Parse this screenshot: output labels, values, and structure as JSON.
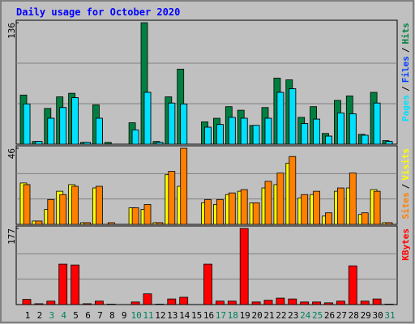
{
  "title": "Daily usage for October 2020",
  "legend_separator": "/",
  "chart_data": [
    {
      "type": "bar",
      "ylim": [
        0,
        136
      ],
      "yticks": [
        136
      ],
      "series": [
        {
          "name": "Hits",
          "color": "#008040",
          "values": [
            55,
            3,
            40,
            53,
            57,
            2,
            44,
            2,
            0,
            24,
            136,
            3,
            53,
            84,
            0,
            25,
            29,
            42,
            38,
            21,
            41,
            74,
            72,
            30,
            42,
            12,
            49,
            54,
            11,
            58,
            4
          ]
        },
        {
          "name": "Files",
          "color": "#0040ff",
          "values": [
            45,
            3,
            29,
            41,
            52,
            2,
            29,
            0,
            0,
            16,
            58,
            2,
            46,
            45,
            0,
            19,
            22,
            30,
            29,
            21,
            29,
            58,
            62,
            23,
            28,
            9,
            35,
            34,
            10,
            46,
            3
          ]
        },
        {
          "name": "Pages",
          "color": "#00e0ff",
          "values": [
            45,
            3,
            29,
            41,
            52,
            2,
            29,
            0,
            0,
            16,
            58,
            2,
            46,
            45,
            0,
            19,
            22,
            30,
            29,
            21,
            29,
            58,
            62,
            23,
            28,
            9,
            35,
            34,
            10,
            46,
            3
          ]
        }
      ]
    },
    {
      "type": "bar",
      "ylim": [
        0,
        46
      ],
      "yticks": [
        46
      ],
      "series": [
        {
          "name": "Visits",
          "color": "#ffff00",
          "values": [
            25,
            2,
            9,
            20,
            24,
            1,
            22,
            0,
            0,
            10,
            9,
            1,
            30,
            23,
            0,
            13,
            12,
            18,
            20,
            13,
            22,
            24,
            37,
            16,
            18,
            5,
            20,
            22,
            6,
            21,
            1
          ]
        },
        {
          "name": "Sites",
          "color": "#ff8000",
          "values": [
            24,
            2,
            15,
            18,
            23,
            1,
            23,
            1,
            0,
            10,
            12,
            1,
            32,
            46,
            0,
            15,
            15,
            19,
            21,
            13,
            26,
            31,
            41,
            18,
            20,
            7,
            22,
            31,
            7,
            20,
            1
          ]
        }
      ]
    },
    {
      "type": "bar",
      "ylim": [
        0,
        177
      ],
      "yticks": [
        177
      ],
      "categories": [
        "1",
        "2",
        "3",
        "4",
        "5",
        "6",
        "7",
        "8",
        "9",
        "10",
        "11",
        "12",
        "13",
        "14",
        "15",
        "16",
        "17",
        "18",
        "19",
        "20",
        "21",
        "22",
        "23",
        "24",
        "25",
        "26",
        "27",
        "28",
        "29",
        "30",
        "31"
      ],
      "label_colors": [
        "#000000",
        "#000000",
        "#00805c",
        "#00805c",
        "#000000",
        "#000000",
        "#000000",
        "#000000",
        "#000000",
        "#00805c",
        "#00805c",
        "#000000",
        "#000000",
        "#000000",
        "#000000",
        "#000000",
        "#00805c",
        "#00805c",
        "#000000",
        "#000000",
        "#000000",
        "#000000",
        "#000000",
        "#00805c",
        "#00805c",
        "#000000",
        "#000000",
        "#000000",
        "#000000",
        "#000000",
        "#00805c"
      ],
      "series": [
        {
          "name": "KBytes",
          "color": "#ff0000",
          "values": [
            12,
            2,
            8,
            94,
            92,
            2,
            8,
            1,
            0,
            6,
            25,
            1,
            13,
            17,
            0,
            94,
            8,
            8,
            177,
            6,
            10,
            15,
            13,
            6,
            6,
            4,
            8,
            90,
            8,
            13,
            1
          ]
        }
      ]
    }
  ]
}
